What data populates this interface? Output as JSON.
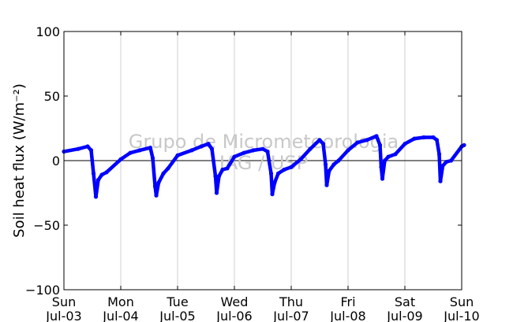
{
  "chart_data": {
    "type": "line",
    "ylabel": "Soil heat flux (W/m⁻²)",
    "ylim": [
      -100,
      100
    ],
    "yticks": [
      100,
      50,
      0,
      -50,
      -100
    ],
    "ytick_labels": [
      "100",
      "50",
      "0",
      "−50",
      "−100"
    ],
    "xlim": [
      "2016-07-03",
      "2016-07-10"
    ],
    "xtick_labels": [
      {
        "day": "Sun",
        "date": "Jul-03"
      },
      {
        "day": "Mon",
        "date": "Jul-04"
      },
      {
        "day": "Tue",
        "date": "Jul-05"
      },
      {
        "day": "Wed",
        "date": "Jul-06"
      },
      {
        "day": "Thu",
        "date": "Jul-07"
      },
      {
        "day": "Fri",
        "date": "Jul-08"
      },
      {
        "day": "Sat",
        "date": "Jul-09"
      },
      {
        "day": "Sun",
        "date": "Jul-10"
      }
    ],
    "grid": "vertical",
    "zero_line": true,
    "series": [
      {
        "color": "#0000ff",
        "points": [
          {
            "x": "2016-07-03 00:00",
            "y": 7
          },
          {
            "x": "2016-07-03 06:00",
            "y": 9
          },
          {
            "x": "2016-07-03 10:00",
            "y": 11
          },
          {
            "x": "2016-07-03 11:30",
            "y": 8
          },
          {
            "x": "2016-07-03 12:30",
            "y": -10
          },
          {
            "x": "2016-07-03 13:30",
            "y": -28
          },
          {
            "x": "2016-07-03 14:30",
            "y": -15
          },
          {
            "x": "2016-07-03 16:00",
            "y": -11
          },
          {
            "x": "2016-07-03 18:00",
            "y": -9
          },
          {
            "x": "2016-07-04 00:00",
            "y": 1
          },
          {
            "x": "2016-07-04 04:00",
            "y": 6
          },
          {
            "x": "2016-07-04 08:00",
            "y": 8
          },
          {
            "x": "2016-07-04 12:30",
            "y": 10
          },
          {
            "x": "2016-07-04 13:30",
            "y": 2
          },
          {
            "x": "2016-07-04 14:30",
            "y": -20
          },
          {
            "x": "2016-07-04 15:00",
            "y": -27
          },
          {
            "x": "2016-07-04 16:00",
            "y": -17
          },
          {
            "x": "2016-07-04 18:00",
            "y": -10
          },
          {
            "x": "2016-07-04 20:00",
            "y": -6
          },
          {
            "x": "2016-07-05 00:00",
            "y": 4
          },
          {
            "x": "2016-07-05 06:00",
            "y": 8
          },
          {
            "x": "2016-07-05 10:00",
            "y": 11
          },
          {
            "x": "2016-07-05 13:00",
            "y": 13
          },
          {
            "x": "2016-07-05 14:30",
            "y": 9
          },
          {
            "x": "2016-07-05 16:00",
            "y": -12
          },
          {
            "x": "2016-07-05 16:30",
            "y": -25
          },
          {
            "x": "2016-07-05 17:30",
            "y": -12
          },
          {
            "x": "2016-07-05 19:00",
            "y": -7
          },
          {
            "x": "2016-07-05 21:00",
            "y": -6
          },
          {
            "x": "2016-07-06 00:00",
            "y": 3
          },
          {
            "x": "2016-07-06 04:00",
            "y": 6
          },
          {
            "x": "2016-07-06 08:00",
            "y": 8
          },
          {
            "x": "2016-07-06 12:00",
            "y": 9
          },
          {
            "x": "2016-07-06 14:00",
            "y": 7
          },
          {
            "x": "2016-07-06 15:30",
            "y": -10
          },
          {
            "x": "2016-07-06 16:00",
            "y": -26
          },
          {
            "x": "2016-07-06 17:00",
            "y": -17
          },
          {
            "x": "2016-07-06 18:30",
            "y": -10
          },
          {
            "x": "2016-07-06 21:00",
            "y": -7
          },
          {
            "x": "2016-07-07 00:00",
            "y": -5
          },
          {
            "x": "2016-07-07 04:00",
            "y": 1
          },
          {
            "x": "2016-07-07 08:00",
            "y": 9
          },
          {
            "x": "2016-07-07 12:00",
            "y": 16
          },
          {
            "x": "2016-07-07 13:30",
            "y": 13
          },
          {
            "x": "2016-07-07 14:30",
            "y": -3
          },
          {
            "x": "2016-07-07 15:00",
            "y": -19
          },
          {
            "x": "2016-07-07 16:00",
            "y": -8
          },
          {
            "x": "2016-07-07 18:00",
            "y": -3
          },
          {
            "x": "2016-07-07 20:00",
            "y": 0
          },
          {
            "x": "2016-07-08 00:00",
            "y": 8
          },
          {
            "x": "2016-07-08 04:00",
            "y": 14
          },
          {
            "x": "2016-07-08 08:00",
            "y": 16
          },
          {
            "x": "2016-07-08 12:00",
            "y": 19
          },
          {
            "x": "2016-07-08 13:30",
            "y": 12
          },
          {
            "x": "2016-07-08 14:00",
            "y": -5
          },
          {
            "x": "2016-07-08 14:30",
            "y": -14
          },
          {
            "x": "2016-07-08 15:30",
            "y": 0
          },
          {
            "x": "2016-07-08 17:00",
            "y": 3
          },
          {
            "x": "2016-07-08 20:00",
            "y": 5
          },
          {
            "x": "2016-07-09 00:00",
            "y": 13
          },
          {
            "x": "2016-07-09 04:00",
            "y": 17
          },
          {
            "x": "2016-07-09 08:00",
            "y": 18
          },
          {
            "x": "2016-07-09 12:00",
            "y": 18
          },
          {
            "x": "2016-07-09 13:30",
            "y": 16
          },
          {
            "x": "2016-07-09 14:30",
            "y": 5
          },
          {
            "x": "2016-07-09 15:00",
            "y": -16
          },
          {
            "x": "2016-07-09 16:00",
            "y": -4
          },
          {
            "x": "2016-07-09 17:30",
            "y": -1
          },
          {
            "x": "2016-07-09 19:30",
            "y": 0
          },
          {
            "x": "2016-07-10 00:00",
            "y": 11
          },
          {
            "x": "2016-07-10 01:00",
            "y": 12
          }
        ]
      }
    ]
  },
  "watermark": {
    "line1": "Grupo de Micrometeorologia",
    "line2": "IAG / USP"
  }
}
